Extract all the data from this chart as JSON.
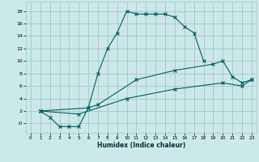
{
  "xlabel": "Humidex (Indice chaleur)",
  "background_color": "#cde8e8",
  "grid_color": "#a0c8c8",
  "line_color": "#006060",
  "xlim": [
    -0.5,
    23.5
  ],
  "ylim": [
    -1.5,
    19.5
  ],
  "xticks": [
    0,
    1,
    2,
    3,
    4,
    5,
    6,
    7,
    8,
    9,
    10,
    11,
    12,
    13,
    14,
    15,
    16,
    17,
    18,
    19,
    20,
    21,
    22,
    23
  ],
  "yticks": [
    0,
    2,
    4,
    6,
    8,
    10,
    12,
    14,
    16,
    18
  ],
  "line1_x": [
    1,
    2,
    3,
    4,
    5,
    6,
    7,
    8,
    9,
    10,
    11,
    12,
    13,
    14,
    15,
    16,
    17,
    18
  ],
  "line1_y": [
    2,
    1,
    -0.5,
    -0.5,
    -0.5,
    2.5,
    8,
    12,
    14.5,
    18,
    17.5,
    17.5,
    17.5,
    17.5,
    17,
    15.5,
    14.5,
    10
  ],
  "line2_x": [
    1,
    6,
    7,
    11,
    15,
    19,
    20,
    21,
    22,
    23
  ],
  "line2_y": [
    2,
    2.5,
    3,
    7,
    8.5,
    9.5,
    10,
    7.5,
    6.5,
    7
  ],
  "line3_x": [
    1,
    5,
    10,
    15,
    20,
    22,
    23
  ],
  "line3_y": [
    2,
    1.5,
    4,
    5.5,
    6.5,
    6.0,
    7
  ]
}
